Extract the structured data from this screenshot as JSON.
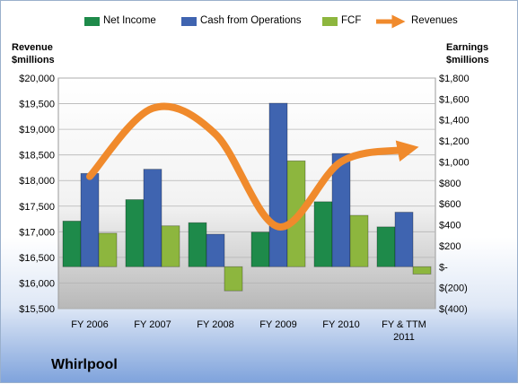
{
  "chart_data": {
    "type": "bar",
    "company": "Whirlpool",
    "categories": [
      "FY 2006",
      "FY 2007",
      "FY 2008",
      "FY 2009",
      "FY 2010",
      "FY & TTM\n2011"
    ],
    "left_axis": {
      "label": "Revenue\n$millions",
      "ylim": [
        15500,
        20000
      ],
      "ticks": [
        "$20,000",
        "$19,500",
        "$19,000",
        "$18,500",
        "$18,000",
        "$17,500",
        "$17,000",
        "$16,500",
        "$16,000",
        "$15,500"
      ]
    },
    "right_axis": {
      "label": "Earnings\n$millions",
      "ylim": [
        -400,
        1800
      ],
      "ticks": [
        "$1,800",
        "$1,600",
        "$1,400",
        "$1,200",
        "$1,000",
        "$800",
        "$600",
        "$400",
        "$200",
        "$-",
        "$(200)",
        "$(400)"
      ]
    },
    "series": [
      {
        "name": "Net Income",
        "axis": "right",
        "kind": "bar",
        "color": "#1e8a4a",
        "values": [
          435,
          640,
          420,
          330,
          620,
          380
        ]
      },
      {
        "name": "Cash from Operations",
        "axis": "right",
        "kind": "bar",
        "color": "#3f64b0",
        "values": [
          890,
          930,
          310,
          1560,
          1080,
          520
        ]
      },
      {
        "name": "FCF",
        "axis": "right",
        "kind": "bar",
        "color": "#8db63e",
        "values": [
          320,
          390,
          -230,
          1010,
          490,
          -70
        ]
      },
      {
        "name": "Revenues",
        "axis": "left",
        "kind": "line",
        "color": "#f08a2c",
        "values": [
          18080,
          19410,
          18907,
          17099,
          18366,
          18600
        ]
      }
    ],
    "grid": true,
    "legend": "top"
  }
}
